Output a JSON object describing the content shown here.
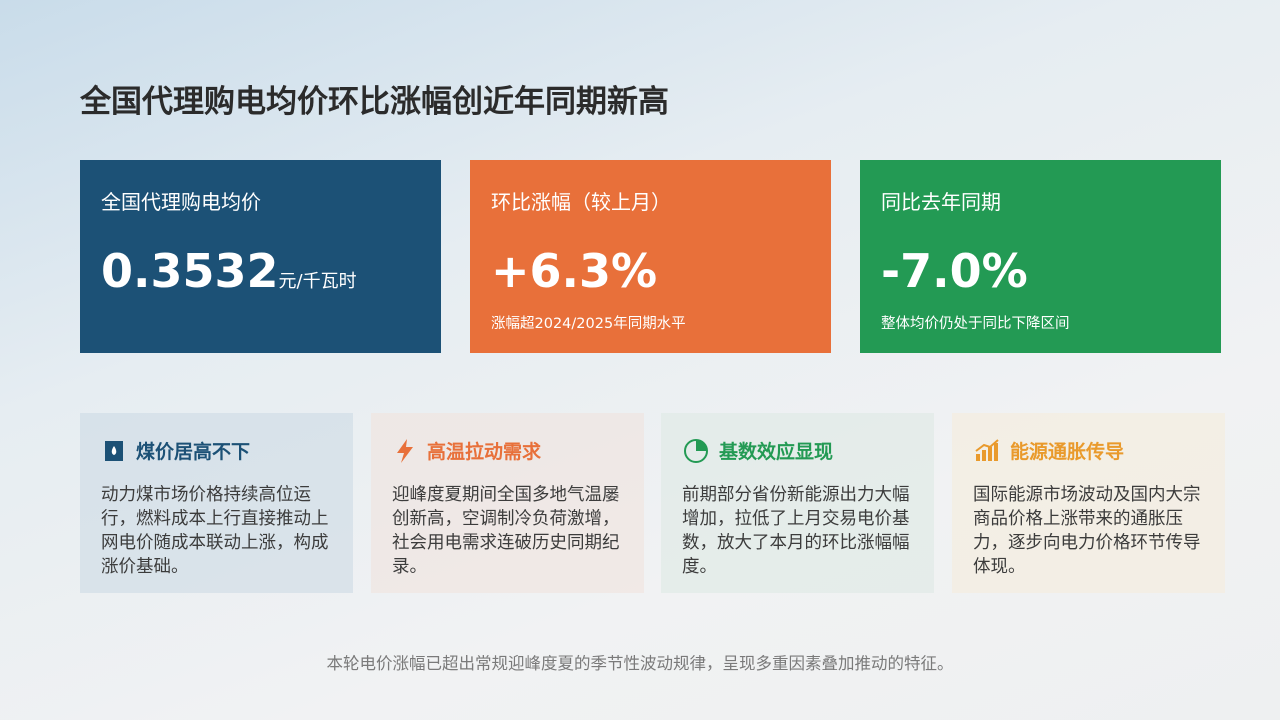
{
  "header": {
    "title": "全国代理购电均价环比涨幅创近年同期新高"
  },
  "kpis": [
    {
      "label": "全国代理购电均价",
      "value": "0.3532",
      "unit": "元/千瓦时"
    },
    {
      "label": "环比涨幅（较上月）",
      "value": "+6.3%",
      "note": "涨幅超2024/2025年同期水平"
    },
    {
      "label": "同比去年同期",
      "value": "-7.0%",
      "note": "整体均价仍处于同比下降区间"
    }
  ],
  "factors": [
    {
      "title": "煤价居高不下",
      "body": "动力煤市场价格持续高位运行，燃料成本上行直接推动上网电价随成本联动上涨，构成涨价基础。"
    },
    {
      "title": "高温拉动需求",
      "body": "迎峰度夏期间全国多地气温屡创新高，空调制冷负荷激增，社会用电需求连破历史同期纪录。"
    },
    {
      "title": "基数效应显现",
      "body": "前期部分省份新能源出力大幅增加，拉低了上月交易电价基数，放大了本月的环比涨幅幅度。"
    },
    {
      "title": "能源通胀传导",
      "body": "国际能源市场波动及国内大宗商品价格上涨带来的通胀压力，逐步向电力价格环节传导体现。"
    }
  ],
  "footer": "本轮电价涨幅已超出常规迎峰度夏的季节性波动规律，呈现多重因素叠加推动的特征。"
}
